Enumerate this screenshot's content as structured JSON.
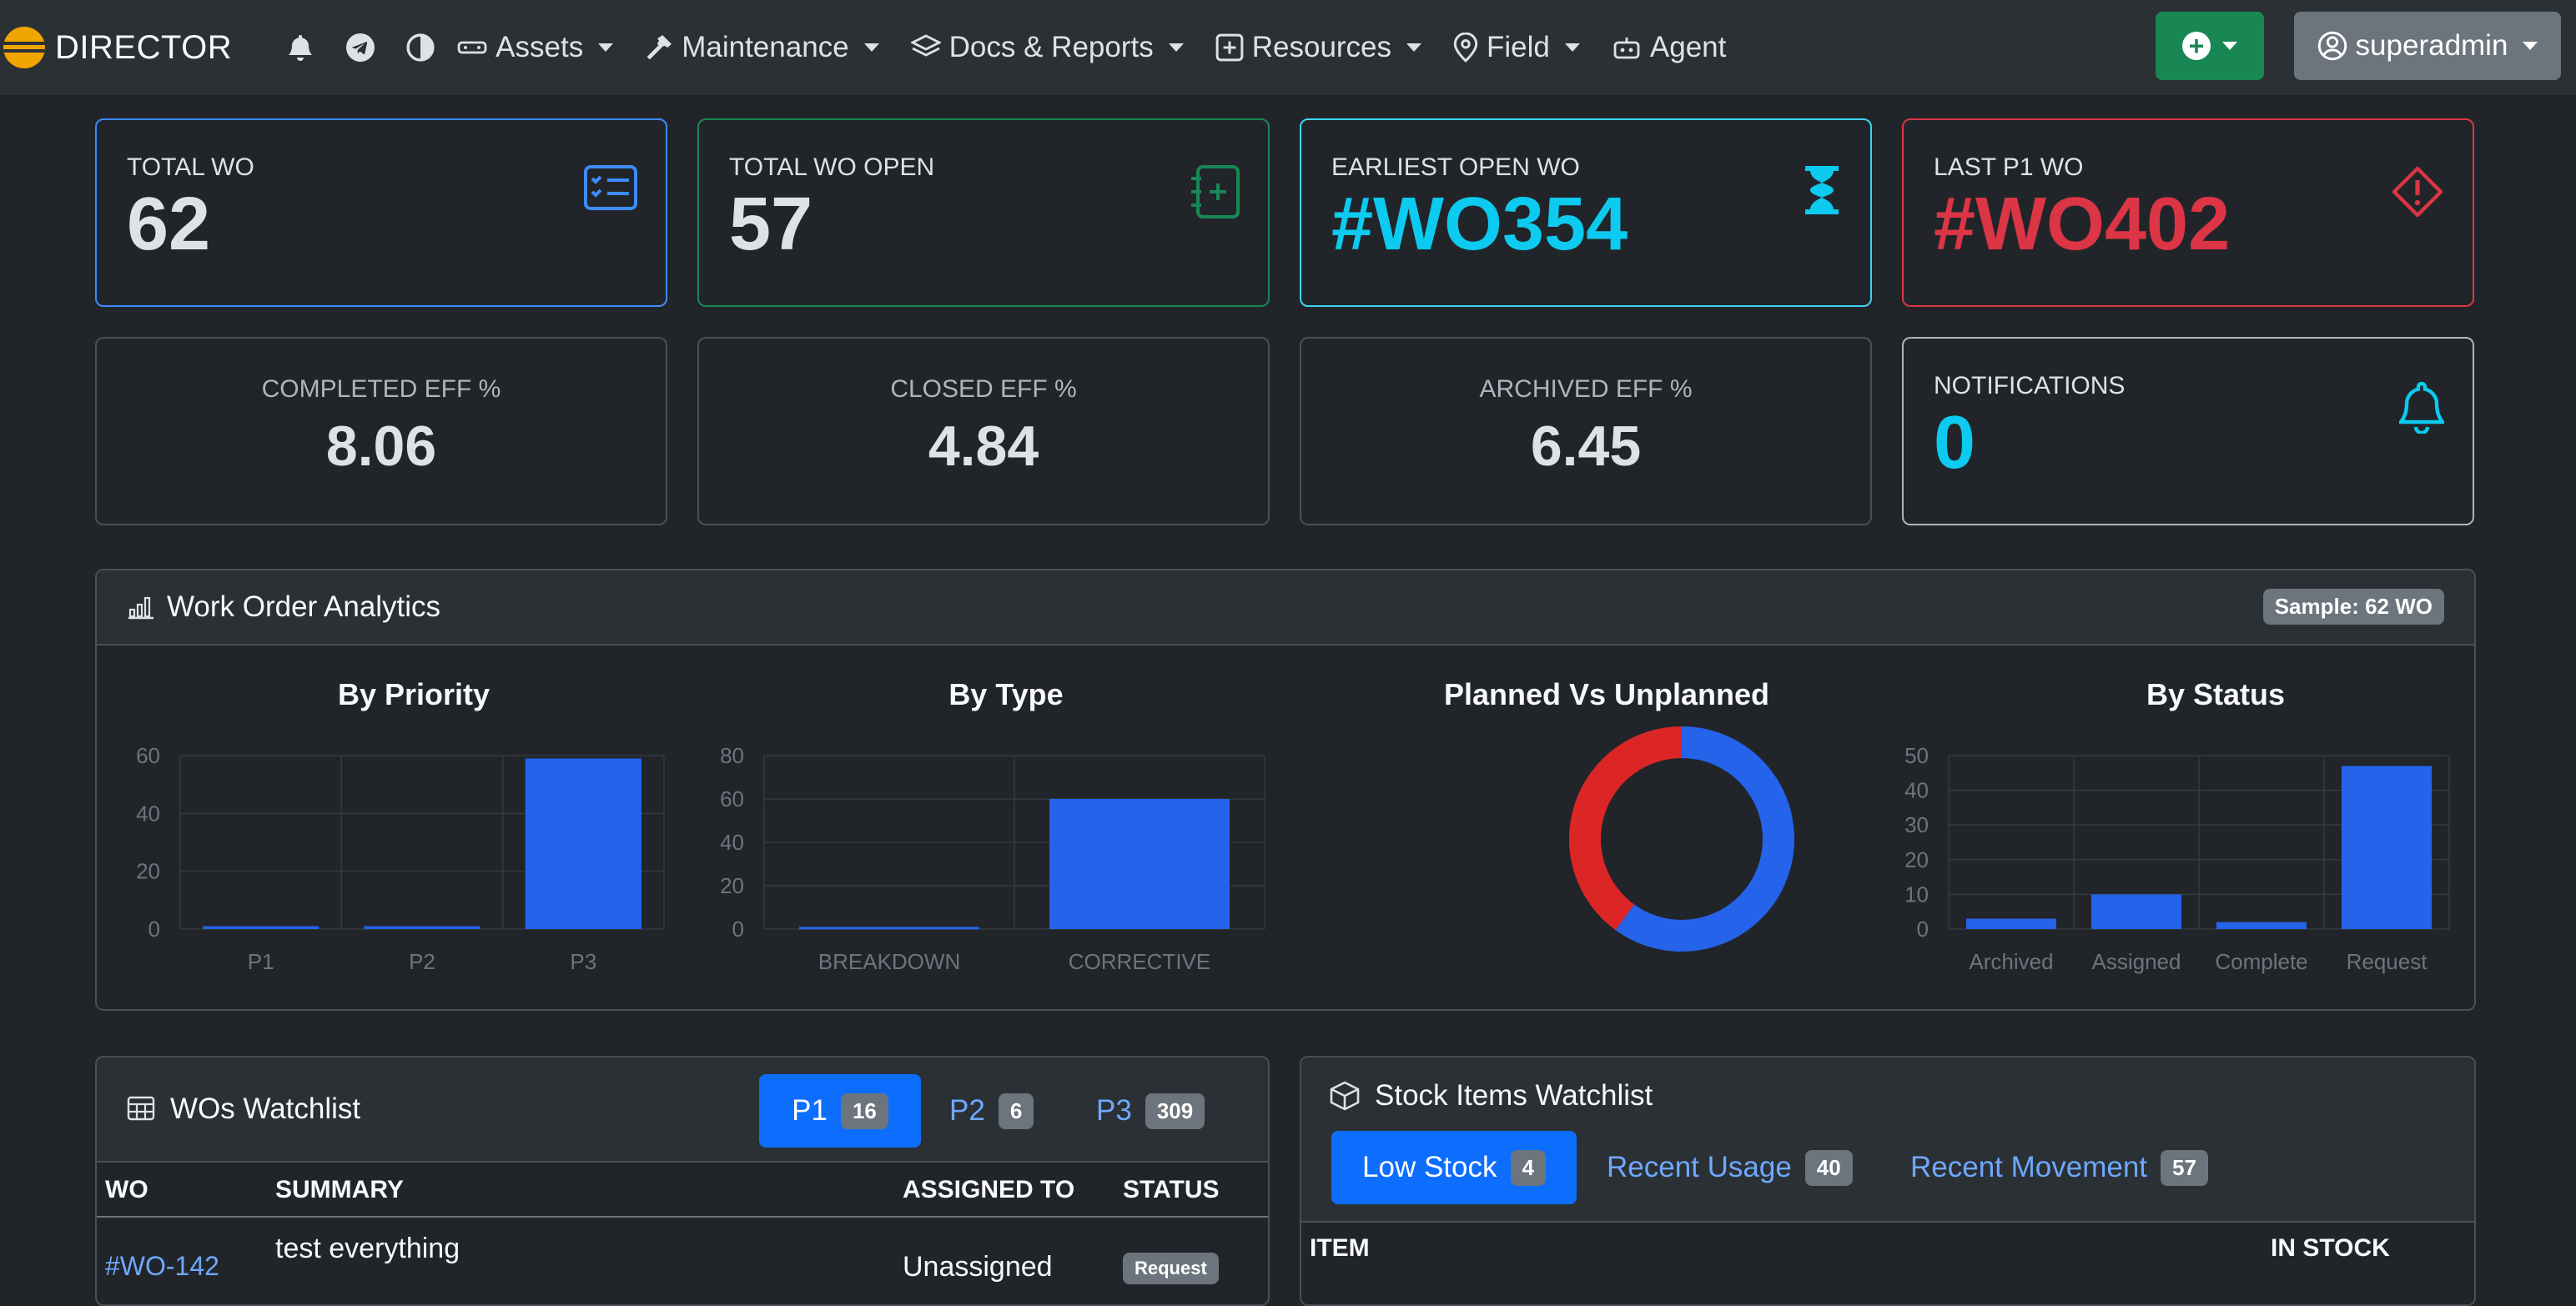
{
  "navbar": {
    "brand": "DIRECTOR",
    "icons": [
      "bell-icon",
      "telegram-icon",
      "contrast-icon"
    ],
    "items": [
      {
        "label": "Assets",
        "icon": "car-icon",
        "dropdown": true
      },
      {
        "label": "Maintenance",
        "icon": "hammer-icon",
        "dropdown": true
      },
      {
        "label": "Docs & Reports",
        "icon": "layers-icon",
        "dropdown": true
      },
      {
        "label": "Resources",
        "icon": "plus-square-icon",
        "dropdown": true
      },
      {
        "label": "Field",
        "icon": "map-pin-icon",
        "dropdown": true
      },
      {
        "label": "Agent",
        "icon": "robot-icon",
        "dropdown": false
      }
    ],
    "user": "superadmin"
  },
  "stats": {
    "total_wo": {
      "label": "TOTAL WO",
      "value": "62"
    },
    "total_open": {
      "label": "TOTAL WO OPEN",
      "value": "57"
    },
    "earliest_open": {
      "label": "EARLIEST OPEN WO",
      "value": "#WO354"
    },
    "last_p1": {
      "label": "LAST P1 WO",
      "value": "#WO402"
    },
    "completed_eff": {
      "label": "COMPLETED EFF %",
      "value": "8.06"
    },
    "closed_eff": {
      "label": "CLOSED EFF %",
      "value": "4.84"
    },
    "archived_eff": {
      "label": "ARCHIVED EFF %",
      "value": "6.45"
    },
    "notifications": {
      "label": "NOTIFICATIONS",
      "value": "0"
    }
  },
  "analytics": {
    "title": "Work Order Analytics",
    "sample": "Sample: 62 WO"
  },
  "chart_data": [
    {
      "type": "bar",
      "title": "By Priority",
      "categories": [
        "P1",
        "P2",
        "P3"
      ],
      "values": [
        1,
        1,
        59
      ],
      "ylim": [
        0,
        60
      ],
      "yticks": [
        0,
        20,
        40,
        60
      ],
      "color": "#2563eb"
    },
    {
      "type": "bar",
      "title": "By Type",
      "categories": [
        "BREAKDOWN",
        "CORRECTIVE"
      ],
      "values": [
        1,
        60
      ],
      "ylim": [
        0,
        80
      ],
      "yticks": [
        0,
        20,
        40,
        60,
        80
      ],
      "color": "#2563eb"
    },
    {
      "type": "pie",
      "title": "Planned Vs Unplanned",
      "donut": true,
      "values": [
        0.6,
        0.4
      ],
      "colors": [
        "#2563eb",
        "#dc2626"
      ]
    },
    {
      "type": "bar",
      "title": "By Status",
      "categories": [
        "Archived",
        "Assigned",
        "Complete",
        "Request"
      ],
      "values": [
        3,
        10,
        2,
        47
      ],
      "ylim": [
        0,
        50
      ],
      "yticks": [
        0,
        10,
        20,
        30,
        40,
        50
      ],
      "color": "#2563eb"
    }
  ],
  "wo_watchlist": {
    "title": "WOs Watchlist",
    "tabs": [
      {
        "label": "P1",
        "count": "16"
      },
      {
        "label": "P2",
        "count": "6"
      },
      {
        "label": "P3",
        "count": "309"
      }
    ],
    "columns": [
      "WO",
      "SUMMARY",
      "ASSIGNED TO",
      "STATUS"
    ],
    "rows": [
      {
        "wo": "#WO-142",
        "summary": "test everything",
        "assigned": "Unassigned",
        "status": "Request"
      }
    ]
  },
  "stock_watchlist": {
    "title": "Stock Items Watchlist",
    "tabs": [
      {
        "label": "Low Stock",
        "count": "4"
      },
      {
        "label": "Recent Usage",
        "count": "40"
      },
      {
        "label": "Recent Movement",
        "count": "57"
      }
    ],
    "columns": [
      "ITEM",
      "IN STOCK"
    ]
  }
}
